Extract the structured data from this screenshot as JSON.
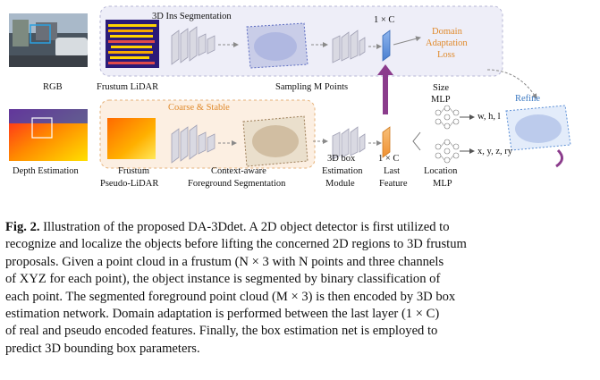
{
  "figure": {
    "labels": {
      "rgb": "RGB",
      "frustum_lidar": "Frustum LiDAR",
      "ins_seg": "3D Ins Segmentation",
      "one_by_c_top": "1 × C",
      "domain_adapt_1": "Domain",
      "domain_adapt_2": "Adaptation",
      "domain_adapt_3": "Loss",
      "sampling": "Sampling M Points",
      "size_1": "Size",
      "size_2": "MLP",
      "refine": "Refine",
      "coarse_stable": "Coarse & Stable",
      "whl": "w, h, l",
      "xyzry": "x, y, z, ry",
      "depth_est": "Depth Estimation",
      "frustum_pseudo_1": "Frustum",
      "frustum_pseudo_2": "Pseudo-LiDAR",
      "context_1": "Context-aware",
      "context_2": "Foreground Segmentation",
      "box3d_1": "3D box",
      "box3d_2": "Estimation",
      "box3d_3": "Module",
      "one_by_c_bottom": "1 × C",
      "last_1": "Last",
      "last_2": "Feature",
      "location_1": "Location",
      "location_2": "MLP"
    },
    "colors": {
      "real_branch_bg": "#eeeef8",
      "pseudo_branch_bg": "#fcefe2",
      "orange_accent": "#f0a040",
      "blue_accent": "#5b8fd6",
      "purple_arrow": "#8b3c8c"
    }
  },
  "caption": {
    "label": "Fig. 2.",
    "lines": [
      " Illustration of the proposed DA-3Ddet. A 2D object detector is first utilized to",
      "recognize and localize the objects before lifting the concerned 2D regions to 3D frustum",
      "proposals. Given a point cloud in a frustum (N × 3 with N points and three channels",
      "of XYZ for each point), the object instance is segmented by binary classification of",
      "each point. The segmented foreground point cloud (M × 3) is then encoded by 3D box",
      "estimation network. Domain adaptation is performed between the last layer (1 × C)",
      "of real and pseudo encoded features. Finally, the box estimation net is employed to",
      "predict 3D bounding box parameters."
    ]
  }
}
